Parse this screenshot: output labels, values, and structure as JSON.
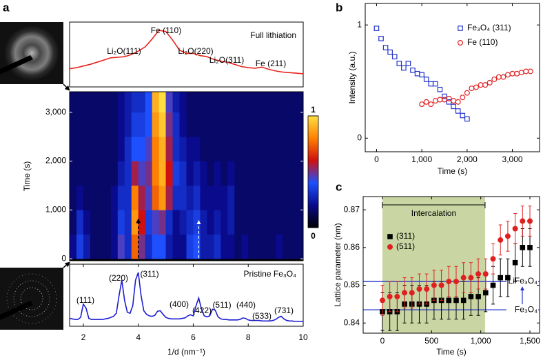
{
  "panel_labels": [
    "a",
    "b",
    "c"
  ],
  "chart_data": [
    {
      "type": "line",
      "label": "Full lithiation",
      "color": "#e8231c",
      "xlim": [
        1.5,
        10
      ],
      "x": [
        1.5,
        1.75,
        2,
        2.25,
        2.5,
        2.75,
        3,
        3.25,
        3.5,
        3.75,
        4,
        4.25,
        4.5,
        4.75,
        5,
        5.25,
        5.5,
        5.75,
        6,
        6.25,
        6.5,
        6.75,
        7,
        7.25,
        7.5,
        7.75,
        8,
        8.25,
        8.5,
        8.75,
        9,
        9.25,
        9.5,
        9.75,
        10
      ],
      "values": [
        0.28,
        0.3,
        0.33,
        0.36,
        0.4,
        0.44,
        0.48,
        0.49,
        0.5,
        0.54,
        0.6,
        0.68,
        0.82,
        0.98,
        0.96,
        0.8,
        0.62,
        0.56,
        0.56,
        0.52,
        0.5,
        0.45,
        0.42,
        0.4,
        0.36,
        0.32,
        0.3,
        0.29,
        0.31,
        0.27,
        0.24,
        0.22,
        0.21,
        0.2,
        0.19
      ],
      "annotations": [
        {
          "text": "Li₂O(111)",
          "color": "#000000"
        },
        {
          "text": "Fe (110)",
          "color": "#e8231c"
        },
        {
          "text": "Li₂O(220)",
          "color": "#000000"
        },
        {
          "text": "Li₂O(311)",
          "color": "#000000"
        },
        {
          "text": "Fe (211)",
          "color": "#e8231c"
        }
      ]
    },
    {
      "type": "heatmap",
      "ylabel": "Time (s)",
      "xlim": [
        1.5,
        10
      ],
      "ylim": [
        -40,
        3420
      ],
      "yticks": [
        0,
        {
          "value": 1000,
          "label": "1,000"
        },
        {
          "value": 2000,
          "label": "2,000"
        },
        {
          "value": 3000,
          "label": "3,000"
        }
      ],
      "x_bins": [
        1.5,
        1.75,
        2,
        2.25,
        2.5,
        2.75,
        3,
        3.25,
        3.5,
        3.75,
        4,
        4.25,
        4.5,
        4.75,
        5,
        5.25,
        5.5,
        5.75,
        6,
        6.25,
        6.5,
        6.75,
        7,
        7.25,
        7.5,
        7.75,
        8,
        8.25,
        8.5,
        8.75,
        9,
        9.25,
        9.5,
        9.75,
        10
      ],
      "y_bins": [
        0,
        500,
        1000,
        1500,
        2000,
        2500,
        3000,
        3420
      ],
      "z": [
        [
          0.2,
          0.35,
          0.25,
          0.15,
          0.15,
          0.15,
          0.2,
          0.45,
          0.3,
          0.75,
          0.5,
          0.3,
          0.4,
          0.4,
          0.25,
          0.2,
          0.2,
          0.35,
          0.4,
          0.25,
          0.25,
          0.3,
          0.2,
          0.2,
          0.15,
          0.2,
          0.15,
          0.15,
          0.15,
          0.15,
          0.2,
          0.15,
          0.15,
          0.15
        ],
        [
          0.15,
          0.3,
          0.2,
          0.15,
          0.15,
          0.15,
          0.2,
          0.35,
          0.3,
          0.85,
          0.6,
          0.35,
          0.45,
          0.5,
          0.3,
          0.2,
          0.25,
          0.3,
          0.35,
          0.25,
          0.2,
          0.25,
          0.2,
          0.25,
          0.15,
          0.15,
          0.15,
          0.15,
          0.15,
          0.15,
          0.15,
          0.15,
          0.15,
          0.15
        ],
        [
          0.15,
          0.2,
          0.15,
          0.15,
          0.15,
          0.15,
          0.2,
          0.3,
          0.3,
          0.8,
          0.55,
          0.45,
          0.75,
          0.85,
          0.55,
          0.3,
          0.3,
          0.25,
          0.3,
          0.2,
          0.2,
          0.2,
          0.2,
          0.25,
          0.15,
          0.15,
          0.15,
          0.15,
          0.15,
          0.15,
          0.15,
          0.15,
          0.15,
          0.15
        ],
        [
          0.15,
          0.15,
          0.15,
          0.15,
          0.15,
          0.15,
          0.15,
          0.25,
          0.3,
          0.55,
          0.45,
          0.5,
          0.8,
          0.9,
          0.6,
          0.35,
          0.3,
          0.2,
          0.25,
          0.2,
          0.15,
          0.2,
          0.15,
          0.2,
          0.15,
          0.15,
          0.15,
          0.15,
          0.15,
          0.15,
          0.15,
          0.15,
          0.15,
          0.15
        ],
        [
          0.15,
          0.15,
          0.15,
          0.15,
          0.15,
          0.15,
          0.15,
          0.2,
          0.3,
          0.4,
          0.4,
          0.45,
          0.8,
          0.9,
          0.55,
          0.3,
          0.25,
          0.2,
          0.2,
          0.15,
          0.15,
          0.15,
          0.15,
          0.15,
          0.15,
          0.15,
          0.15,
          0.15,
          0.15,
          0.15,
          0.15,
          0.15,
          0.15,
          0.15
        ],
        [
          0.15,
          0.15,
          0.15,
          0.15,
          0.15,
          0.15,
          0.15,
          0.2,
          0.25,
          0.35,
          0.35,
          0.4,
          0.85,
          0.95,
          0.5,
          0.3,
          0.2,
          0.15,
          0.15,
          0.15,
          0.15,
          0.15,
          0.15,
          0.15,
          0.15,
          0.15,
          0.15,
          0.15,
          0.15,
          0.15,
          0.15,
          0.15,
          0.15,
          0.15
        ],
        [
          0.15,
          0.15,
          0.15,
          0.15,
          0.15,
          0.15,
          0.15,
          0.2,
          0.25,
          0.3,
          0.3,
          0.4,
          0.9,
          1,
          0.45,
          0.25,
          0.2,
          0.15,
          0.15,
          0.15,
          0.15,
          0.15,
          0.15,
          0.15,
          0.15,
          0.15,
          0.15,
          0.15,
          0.15,
          0.15,
          0.15,
          0.15,
          0.15,
          0.15
        ]
      ],
      "colorscale": [
        "#000000",
        "#0a0a8c",
        "#1e50ff",
        "#d01010",
        "#ff8000",
        "#ffe040"
      ],
      "colorbar_ticks": [
        0,
        1
      ]
    },
    {
      "type": "line",
      "label": "Pristine Fe₃O₄",
      "color": "#1c1cd0",
      "xlim": [
        1.5,
        10
      ],
      "xticks": [
        2,
        4,
        6,
        8,
        10
      ],
      "xlabel": "1/d (nm⁻¹)",
      "x": [
        1.5,
        1.6,
        1.7,
        1.8,
        1.9,
        2,
        2.1,
        2.2,
        2.3,
        2.4,
        2.5,
        2.6,
        2.7,
        2.8,
        2.9,
        3,
        3.1,
        3.2,
        3.3,
        3.4,
        3.5,
        3.6,
        3.7,
        3.8,
        3.9,
        4,
        4.1,
        4.2,
        4.3,
        4.4,
        4.5,
        4.6,
        4.7,
        4.8,
        4.9,
        5,
        5.1,
        5.2,
        5.3,
        5.4,
        5.5,
        5.6,
        5.7,
        5.8,
        5.9,
        6,
        6.1,
        6.2,
        6.3,
        6.4,
        6.5,
        6.6,
        6.7,
        6.8,
        6.9,
        7,
        7.1,
        7.2,
        7.3,
        7.4,
        7.5,
        7.6,
        7.7,
        7.8,
        7.9,
        8,
        8.1,
        8.2,
        8.3,
        8.4,
        8.5,
        8.6,
        8.7,
        8.8,
        8.9,
        9,
        9.1,
        9.2,
        9.3,
        9.4,
        9.5,
        9.6,
        9.7,
        9.8,
        9.9,
        10
      ],
      "values": [
        0.1,
        0.09,
        0.08,
        0.08,
        0.12,
        0.38,
        0.3,
        0.1,
        0.08,
        0.08,
        0.08,
        0.08,
        0.08,
        0.09,
        0.1,
        0.12,
        0.14,
        0.2,
        0.55,
        0.85,
        0.45,
        0.22,
        0.2,
        0.35,
        0.85,
        1.0,
        0.55,
        0.25,
        0.18,
        0.15,
        0.14,
        0.16,
        0.24,
        0.25,
        0.18,
        0.12,
        0.1,
        0.09,
        0.09,
        0.09,
        0.09,
        0.1,
        0.11,
        0.15,
        0.17,
        0.15,
        0.35,
        0.5,
        0.28,
        0.15,
        0.13,
        0.15,
        0.28,
        0.26,
        0.13,
        0.09,
        0.08,
        0.08,
        0.07,
        0.07,
        0.07,
        0.07,
        0.08,
        0.11,
        0.1,
        0.07,
        0.06,
        0.06,
        0.06,
        0.06,
        0.05,
        0.05,
        0.05,
        0.05,
        0.06,
        0.08,
        0.12,
        0.14,
        0.09,
        0.06,
        0.05,
        0.05,
        0.04,
        0.04,
        0.04,
        0.04
      ],
      "annotations": [
        {
          "text": "(111)"
        },
        {
          "text": "(220)"
        },
        {
          "text": "(311)"
        },
        {
          "text": "(400)"
        },
        {
          "text": "(422)"
        },
        {
          "text": "(511)"
        },
        {
          "text": "(440)"
        },
        {
          "text": "(533)"
        },
        {
          "text": "(731)"
        }
      ]
    },
    {
      "type": "scatter",
      "xlabel": "Time (s)",
      "ylabel": "Intensity (a.u.)",
      "xlim": [
        -250,
        3600
      ],
      "ylim": [
        -0.12,
        1.19
      ],
      "xticks": [
        0,
        {
          "value": 1000,
          "label": "1,000"
        },
        {
          "value": 2000,
          "label": "2,000"
        },
        {
          "value": 3000,
          "label": "3,000"
        }
      ],
      "yticks": [
        0,
        1
      ],
      "series": [
        {
          "name": "Fe₃O₄ (311)",
          "color": "#2233cc",
          "marker": "square",
          "x": [
            0,
            100,
            200,
            300,
            400,
            500,
            600,
            700,
            800,
            900,
            1000,
            1100,
            1200,
            1300,
            1400,
            1500,
            1600,
            1700,
            1800,
            1900,
            2000
          ],
          "values": [
            0.97,
            0.88,
            0.8,
            0.76,
            0.72,
            0.66,
            0.62,
            0.66,
            0.6,
            0.57,
            0.56,
            0.52,
            0.48,
            0.48,
            0.43,
            0.37,
            0.32,
            0.28,
            0.24,
            0.2,
            0.17
          ]
        },
        {
          "name": "Fe (110)",
          "color": "#e02020",
          "marker": "circle",
          "x": [
            1000,
            1100,
            1200,
            1300,
            1400,
            1500,
            1600,
            1700,
            1800,
            1900,
            2000,
            2100,
            2200,
            2300,
            2400,
            2500,
            2600,
            2700,
            2800,
            2900,
            3000,
            3100,
            3200,
            3300,
            3400
          ],
          "values": [
            0.3,
            0.32,
            0.3,
            0.33,
            0.34,
            0.34,
            0.35,
            0.33,
            0.32,
            0.36,
            0.4,
            0.44,
            0.45,
            0.47,
            0.47,
            0.49,
            0.52,
            0.54,
            0.54,
            0.56,
            0.57,
            0.57,
            0.58,
            0.59,
            0.59
          ]
        }
      ]
    },
    {
      "type": "errorbar",
      "xlabel": "Time (s)",
      "ylabel": "Lattice parameter (nm)",
      "xlim": [
        -196,
        1598
      ],
      "ylim": [
        0.8373,
        0.8735
      ],
      "xticks": [
        0,
        500,
        {
          "value": 1000,
          "label": "1,000"
        },
        {
          "value": 1500,
          "label": "1,500"
        }
      ],
      "yticks": [
        0.84,
        0.85,
        0.86,
        0.87
      ],
      "shaded_region": {
        "label": "Intercalation",
        "range": [
          0,
          1044
        ],
        "color": "#c9d6a3"
      },
      "reference_lines": [
        {
          "label": "LiFe₃O₄",
          "value": 0.851,
          "color": "#2233cc"
        },
        {
          "label": "Fe₃O₄",
          "value": 0.8435,
          "color": "#2233cc"
        }
      ],
      "series": [
        {
          "name": "(311)",
          "color": "#000000",
          "marker": "square",
          "x": [
            0,
            75,
            150,
            225,
            300,
            375,
            450,
            525,
            600,
            675,
            750,
            825,
            900,
            975,
            1050,
            1125,
            1200,
            1275,
            1350,
            1425,
            1500
          ],
          "values": [
            0.843,
            0.843,
            0.843,
            0.845,
            0.845,
            0.845,
            0.845,
            0.846,
            0.846,
            0.846,
            0.846,
            0.846,
            0.847,
            0.847,
            0.848,
            0.85,
            0.852,
            0.852,
            0.856,
            0.86,
            0.86
          ],
          "errors": [
            0.005,
            0.005,
            0.005,
            0.005,
            0.005,
            0.005,
            0.005,
            0.005,
            0.005,
            0.005,
            0.005,
            0.005,
            0.005,
            0.005,
            0.005,
            0.005,
            0.005,
            0.005,
            0.005,
            0.005,
            0.005
          ]
        },
        {
          "name": "(511)",
          "color": "#e02020",
          "marker": "circle",
          "x": [
            0,
            75,
            150,
            225,
            300,
            375,
            450,
            525,
            600,
            675,
            750,
            825,
            900,
            975,
            1050,
            1125,
            1200,
            1275,
            1350,
            1425,
            1500
          ],
          "values": [
            0.846,
            0.847,
            0.847,
            0.848,
            0.848,
            0.849,
            0.849,
            0.85,
            0.85,
            0.851,
            0.851,
            0.852,
            0.852,
            0.853,
            0.853,
            0.857,
            0.862,
            0.863,
            0.865,
            0.867,
            0.867
          ],
          "errors": [
            0.004,
            0.004,
            0.004,
            0.004,
            0.004,
            0.004,
            0.004,
            0.004,
            0.004,
            0.004,
            0.004,
            0.004,
            0.004,
            0.004,
            0.004,
            0.004,
            0.004,
            0.004,
            0.004,
            0.004,
            0.004
          ]
        }
      ]
    }
  ]
}
